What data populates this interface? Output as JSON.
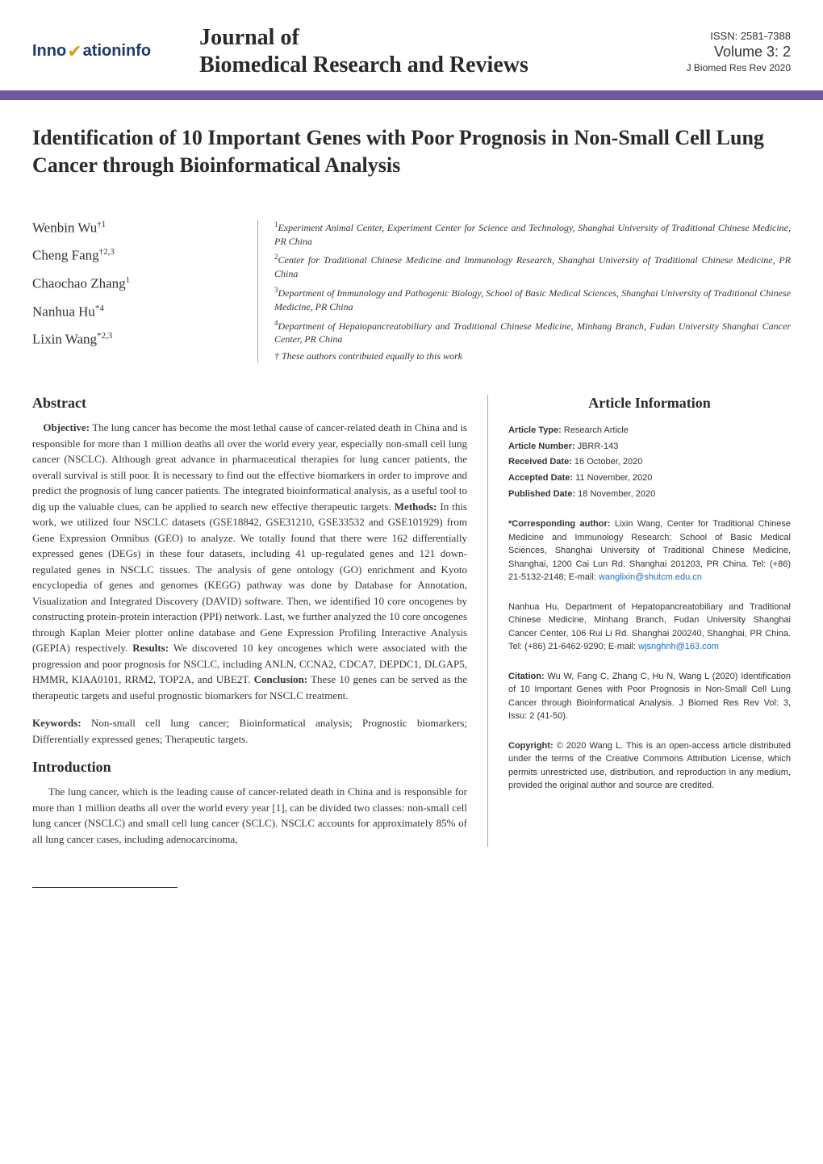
{
  "header": {
    "logo_part1": "Inno",
    "logo_part2": "ationinfo",
    "journal_title_line1": "Journal of",
    "journal_title_line2": "Biomedical Research and Reviews",
    "issn": "ISSN: 2581-7388",
    "volume": "Volume 3: 2",
    "journal_short": "J Biomed Res Rev 2020"
  },
  "article_title": "Identification of 10 Important Genes with Poor Prognosis in Non-Small Cell Lung Cancer through Bioinformatical Analysis",
  "authors": [
    {
      "name": "Wenbin Wu",
      "sup": "†1"
    },
    {
      "name": "Cheng Fang",
      "sup": "†2,3"
    },
    {
      "name": "Chaochao Zhang",
      "sup": "1"
    },
    {
      "name": "Nanhua Hu",
      "sup": "*4"
    },
    {
      "name": "Lixin Wang",
      "sup": "*2,3"
    }
  ],
  "affiliations": [
    {
      "sup": "1",
      "text": "Experiment Animal Center, Experiment Center for Science and Technology, Shanghai University of Traditional Chinese Medicine, PR China"
    },
    {
      "sup": "2",
      "text": "Center for Traditional Chinese Medicine and Immunology Research, Shanghai University of Traditional Chinese Medicine, PR China"
    },
    {
      "sup": "3",
      "text": "Department of Immunology and Pathogenic Biology, School of Basic Medical Sciences, Shanghai University of Traditional Chinese Medicine, PR China"
    },
    {
      "sup": "4",
      "text": "Department of Hepatopancreatobiliary and Traditional Chinese Medicine, Minhang Branch, Fudan University Shanghai Cancer Center, PR China"
    }
  ],
  "equal_contrib": "† These authors contributed equally to this work",
  "abstract": {
    "heading": "Abstract",
    "objective_label": "Objective:",
    "objective": " The lung cancer has become the most lethal cause of cancer-related death in China and is responsible for more than 1 million deaths all over the world every year, especially non-small cell lung cancer (NSCLC). Although great advance in pharmaceutical therapies for lung cancer patients, the overall survival is still poor. It is necessary to find out the effective biomarkers in order to improve and predict the prognosis of lung cancer patients. The integrated bioinformatical analysis, as a useful tool to dig up the valuable clues, can be applied to search new effective therapeutic targets. ",
    "methods_label": "Methods:",
    "methods": " In this work, we utilized four NSCLC datasets (GSE18842, GSE31210, GSE33532 and GSE101929) from Gene Expression Omnibus (GEO) to analyze. We totally found that there were 162 differentially expressed genes (DEGs) in these four datasets, including 41 up-regulated genes and 121 down-regulated genes in NSCLC tissues. The analysis of gene ontology (GO) enrichment and Kyoto encyclopedia of genes and genomes (KEGG) pathway was done by Database for Annotation, Visualization and Integrated Discovery (DAVID) software. Then, we identified 10 core oncogenes by constructing protein-protein interaction (PPI) network. Last, we further analyzed the 10 core oncogenes through Kaplan Meier plotter online database and Gene Expression Profiling Interactive Analysis (GEPIA) respectively. ",
    "results_label": "Results:",
    "results": " We discovered 10 key oncogenes which were associated with the progression and poor prognosis for NSCLC, including ANLN, CCNA2, CDCA7, DEPDC1, DLGAP5, HMMR, KIAA0101, RRM2, TOP2A, and UBE2T. ",
    "conclusion_label": "Conclusion:",
    "conclusion": " These 10 genes can be served as the therapeutic targets and useful prognostic biomarkers for NSCLC treatment."
  },
  "keywords": {
    "label": "Keywords:",
    "text": " Non-small cell lung cancer; Bioinformatical analysis; Prognostic biomarkers; Differentially expressed genes; Therapeutic targets."
  },
  "introduction": {
    "heading": "Introduction",
    "text": "The lung cancer, which is the leading cause of cancer-related death in China and is responsible for more than 1 million deaths all over the world every year [1], can be divided two classes: non-small cell lung cancer (NSCLC) and small cell lung cancer (SCLC). NSCLC accounts for approximately 85% of all lung cancer cases, including adenocarcinoma,"
  },
  "article_info": {
    "heading": "Article Information",
    "rows": [
      {
        "label": "Article Type:",
        "value": " Research Article"
      },
      {
        "label": "Article Number:",
        "value": " JBRR-143"
      },
      {
        "label": "Received Date:",
        "value": " 16 October, 2020"
      },
      {
        "label": "Accepted Date:",
        "value": " 11 November, 2020"
      },
      {
        "label": "Published Date:",
        "value": " 18 November, 2020"
      }
    ]
  },
  "corresponding": {
    "label": "*Corresponding author:",
    "text1": " Lixin Wang, Center for Traditional Chinese Medicine and Immunology Research; School of Basic Medical Sciences, Shanghai University of Traditional Chinese Medicine, Shanghai, 1200 Cai Lun Rd. Shanghai 201203, PR China. Tel: (+86) 21-5132-2148; E-mail: ",
    "email1": "wanglixin@shutcm.edu.cn",
    "text2": "Nanhua Hu, Department of Hepatopancreatobiliary and Traditional Chinese Medicine, Minhang Branch, Fudan University Shanghai Cancer Center, 106 Rui Li Rd. Shanghai 200240, Shanghai, PR China. Tel: (+86) 21-6462-9290; E-mail: ",
    "email2": "wjsnghnh@163.com"
  },
  "citation": {
    "label": "Citation:",
    "text": " Wu W, Fang C, Zhang C, Hu N, Wang L (2020) Identification of 10 Important Genes with Poor Prognosis in Non-Small Cell Lung Cancer through Bioinformatical Analysis. J Biomed Res Rev Vol: 3, Issu: 2 (41-50)."
  },
  "copyright": {
    "label": "Copyright:",
    "text": " © 2020 Wang L. This is an open-access article distributed under the terms of the Creative Commons Attribution License, which permits unrestricted use, distribution, and reproduction in any medium, provided the original author and source are credited."
  },
  "colors": {
    "header_line": "#6d5a9e",
    "logo_brand": "#1a3a6e",
    "logo_accent": "#d4a017",
    "link": "#1a6ec4"
  }
}
